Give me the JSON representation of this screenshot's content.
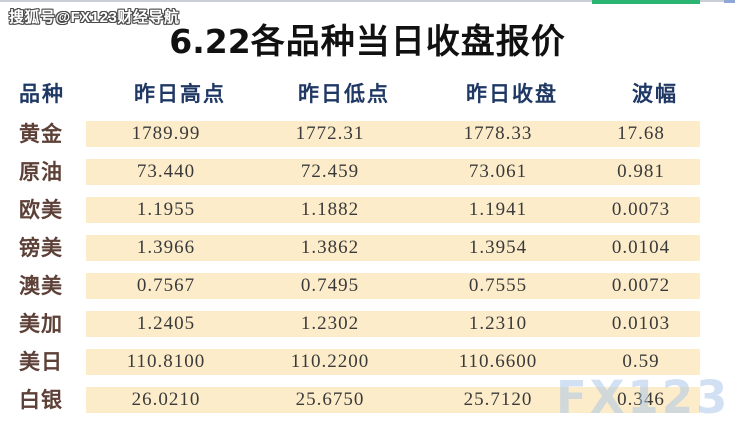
{
  "page": {
    "sohu_watermark": "搜狐号@FX123财经导航",
    "fx_watermark": "FX123",
    "title_prefix": "6.22",
    "title_main": "各品种当日收盘报价"
  },
  "colors": {
    "band_bg": "#fcecca",
    "header_text": "#1f3864",
    "row_label_text": "#5d4037",
    "value_text": "#3a3a3a",
    "title_text": "#111111",
    "accent_green": "#2bb573",
    "hairline": "#c9cfd9",
    "watermark_blue": "#adc8e8"
  },
  "chart_data": {
    "type": "table",
    "title": "6.22各品种当日收盘报价",
    "columns": [
      "品种",
      "昨日高点",
      "昨日低点",
      "昨日收盘",
      "波幅"
    ],
    "rows": [
      [
        "黄金",
        "1789.99",
        "1772.31",
        "1778.33",
        "17.68"
      ],
      [
        "原油",
        "73.440",
        "72.459",
        "73.061",
        "0.981"
      ],
      [
        "欧美",
        "1.1955",
        "1.1882",
        "1.1941",
        "0.0073"
      ],
      [
        "镑美",
        "1.3966",
        "1.3862",
        "1.3954",
        "0.0104"
      ],
      [
        "澳美",
        "0.7567",
        "0.7495",
        "0.7555",
        "0.0072"
      ],
      [
        "美加",
        "1.2405",
        "1.2302",
        "1.2310",
        "0.0103"
      ],
      [
        "美日",
        "110.8100",
        "110.2200",
        "110.6600",
        "0.59"
      ],
      [
        "白银",
        "26.0210",
        "25.6750",
        "25.7120",
        "0.346"
      ]
    ],
    "layout": {
      "row_band_color_alternates": false,
      "value_columns_on_cream_band": true,
      "grid": "off"
    }
  }
}
